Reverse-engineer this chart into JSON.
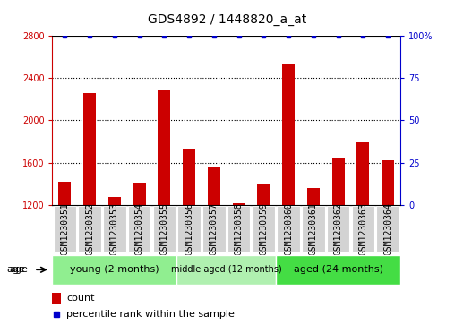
{
  "title": "GDS4892 / 1448820_a_at",
  "samples": [
    "GSM1230351",
    "GSM1230352",
    "GSM1230353",
    "GSM1230354",
    "GSM1230355",
    "GSM1230356",
    "GSM1230357",
    "GSM1230358",
    "GSM1230359",
    "GSM1230360",
    "GSM1230361",
    "GSM1230362",
    "GSM1230363",
    "GSM1230364"
  ],
  "counts": [
    1420,
    2260,
    1270,
    1410,
    2280,
    1730,
    1550,
    1215,
    1390,
    2530,
    1360,
    1640,
    1790,
    1620
  ],
  "percentile_ranks": [
    100,
    100,
    100,
    100,
    100,
    100,
    100,
    100,
    100,
    100,
    100,
    100,
    100,
    100
  ],
  "ylim_left": [
    1200,
    2800
  ],
  "ylim_right": [
    0,
    100
  ],
  "yticks_left": [
    1200,
    1600,
    2000,
    2400,
    2800
  ],
  "yticks_right": [
    0,
    25,
    50,
    75,
    100
  ],
  "bar_color": "#cc0000",
  "dot_color": "#0000cc",
  "groups": [
    {
      "label": "young (2 months)",
      "start": 0,
      "end": 4,
      "color": "#90ee90"
    },
    {
      "label": "middle aged (12 months)",
      "start": 5,
      "end": 8,
      "color": "#b0f0b0"
    },
    {
      "label": "aged (24 months)",
      "start": 9,
      "end": 13,
      "color": "#44dd44"
    }
  ],
  "sample_box_color": "#d3d3d3",
  "age_label": "age",
  "legend_count_label": "count",
  "legend_percentile_label": "percentile rank within the sample",
  "title_fontsize": 10,
  "tick_label_fontsize": 7,
  "group_fontsize": 8,
  "group_fontsize_middle": 7
}
